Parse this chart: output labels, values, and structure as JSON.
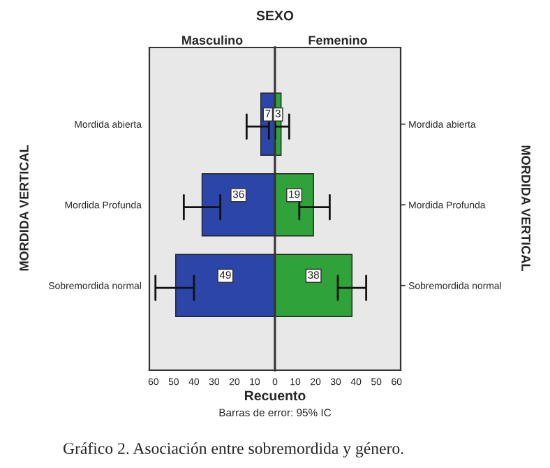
{
  "chart_data": [
    {
      "type": "bar",
      "orientation": "horizontal",
      "title": "Masculino",
      "ylabel": "MORDIDA VERTICAL",
      "annotations": [
        "SEXO"
      ],
      "categories": [
        "Mordida abierta",
        "Mordida Profunda",
        "Sobremordida normal"
      ],
      "series": [
        {
          "color": "#2b45a8",
          "values": [
            7,
            36,
            49
          ],
          "errors": [
            [
              3,
              14
            ],
            [
              27,
              45
            ],
            [
              40,
              59
            ]
          ]
        }
      ],
      "data_labels": true,
      "xlim": [
        62,
        0
      ],
      "xticks": [
        60,
        50,
        40,
        30,
        20,
        10,
        0
      ]
    },
    {
      "type": "bar",
      "orientation": "horizontal",
      "title": "Femenino",
      "xlabel": "Recuento",
      "y2label": "MORDIDA VERTICAL",
      "annotations": [
        "Barras de error: 95% IC",
        "Gráfico 2. Asociación entre sobremordida y género."
      ],
      "categories": [
        "Mordida abierta",
        "Mordida Profunda",
        "Sobremordida normal"
      ],
      "series": [
        {
          "color": "#2fa23a",
          "values": [
            3,
            19,
            38
          ],
          "errors": [
            [
              0,
              7
            ],
            [
              12,
              27
            ],
            [
              31,
              45
            ]
          ]
        }
      ],
      "data_labels": true,
      "xlim": [
        0,
        62
      ],
      "xticks": [
        10,
        20,
        30,
        40,
        50,
        60
      ]
    }
  ]
}
